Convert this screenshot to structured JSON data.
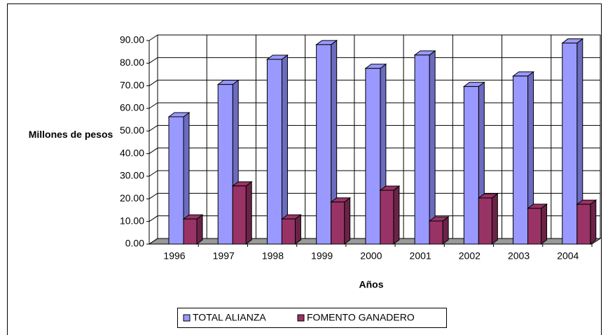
{
  "chart_data": {
    "type": "bar3d",
    "y_label": "Millones de pesos",
    "x_label": "Años",
    "categories": [
      "1996",
      "1997",
      "1998",
      "1999",
      "2000",
      "2001",
      "2002",
      "2003",
      "2004"
    ],
    "series": [
      {
        "name": "TOTAL ALIANZA",
        "color": "#9999ff",
        "side": "#6b6bc0",
        "values": [
          56.3,
          70.6,
          81.7,
          88.2,
          77.7,
          83.6,
          69.7,
          74.3,
          88.9
        ]
      },
      {
        "name": "FOMENTO GANADERO",
        "color": "#993366",
        "side": "#6a2347",
        "values": [
          11.1,
          25.7,
          11.1,
          18.6,
          23.8,
          10.2,
          20.4,
          15.8,
          17.6
        ]
      }
    ],
    "ylim": [
      0,
      90
    ],
    "yticks": [
      {
        "value": 0,
        "label": "0.00"
      },
      {
        "value": 10,
        "label": "10.00"
      },
      {
        "value": 20,
        "label": "20.00"
      },
      {
        "value": 30,
        "label": "30.00"
      },
      {
        "value": 40,
        "label": "40.00"
      },
      {
        "value": 50,
        "label": "50.00"
      },
      {
        "value": 60,
        "label": "60.00"
      },
      {
        "value": 70,
        "label": "70.00"
      },
      {
        "value": 80,
        "label": "80.00"
      },
      {
        "value": 90,
        "label": "90.00"
      }
    ],
    "grid": true
  }
}
